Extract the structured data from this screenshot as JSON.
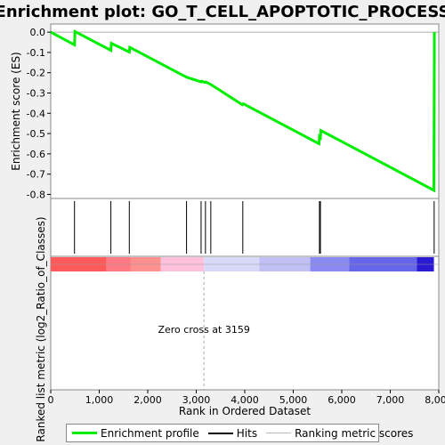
{
  "chart_data": {
    "type": "line",
    "title": "Enrichment plot: GO_T_CELL_APOPTOTIC_PROCESS",
    "ylabel_top": "Enrichment score (ES)",
    "ylabel_bottom": "Ranked list metric (log2_Ratio_of_Classes)",
    "xlabel": "Rank in Ordered Dataset",
    "xlim": [
      0,
      8000
    ],
    "ylim": [
      -0.82,
      0.04
    ],
    "x_ticks": [
      0,
      1000,
      2000,
      3000,
      4000,
      5000,
      6000,
      7000,
      8000
    ],
    "x_tick_labels": [
      "0",
      "1,000",
      "2,000",
      "3,000",
      "4,000",
      "5,000",
      "6,000",
      "7,000",
      "8,000"
    ],
    "y_ticks": [
      0.0,
      -0.1,
      -0.2,
      -0.3,
      -0.4,
      -0.5,
      -0.6,
      -0.7,
      -0.8
    ],
    "y_tick_labels": [
      "0.0",
      "-0.1",
      "-0.2",
      "-0.3",
      "-0.4",
      "-0.5",
      "-0.6",
      "-0.7",
      "-0.8"
    ],
    "series": [
      {
        "name": "Enrichment profile",
        "color": "#00ee00",
        "x": [
          0,
          490,
          500,
          1240,
          1250,
          1620,
          1630,
          2800,
          3100,
          3110,
          3190,
          3200,
          3300,
          3950,
          3970,
          5530,
          5540,
          5560,
          5570,
          7900,
          7910
        ],
        "y": [
          0.0,
          -0.063,
          0.003,
          -0.09,
          -0.055,
          -0.098,
          -0.075,
          -0.222,
          -0.245,
          -0.242,
          -0.248,
          -0.246,
          -0.258,
          -0.358,
          -0.353,
          -0.55,
          -0.515,
          -0.52,
          -0.485,
          -0.78,
          0.0
        ]
      }
    ],
    "hits": [
      490,
      1240,
      1620,
      2800,
      3100,
      3190,
      3300,
      3960,
      5540,
      5560,
      7905
    ],
    "zero_cross_label": "Zero cross at 3159",
    "zero_cross_x": 3159,
    "metric_gradient": [
      {
        "from": 0,
        "to": 1150,
        "color": "#ff5a5a"
      },
      {
        "from": 1150,
        "to": 1650,
        "color": "#ff7a82"
      },
      {
        "from": 1650,
        "to": 2270,
        "color": "#ff9090"
      },
      {
        "from": 2270,
        "to": 3159,
        "color": "#ffc0dc"
      },
      {
        "from": 3159,
        "to": 4300,
        "color": "#d8d8f8"
      },
      {
        "from": 4300,
        "to": 5350,
        "color": "#c0c0f4"
      },
      {
        "from": 5350,
        "to": 6150,
        "color": "#8a8af0"
      },
      {
        "from": 6150,
        "to": 7550,
        "color": "#6666e8"
      },
      {
        "from": 7550,
        "to": 7900,
        "color": "#2a1ad4"
      }
    ],
    "legend": [
      {
        "label": "Enrichment profile",
        "color": "#00ee00"
      },
      {
        "label": "Hits",
        "color": "#000000"
      },
      {
        "label": "Ranking metric scores",
        "color": "#bbbbbb"
      }
    ]
  }
}
